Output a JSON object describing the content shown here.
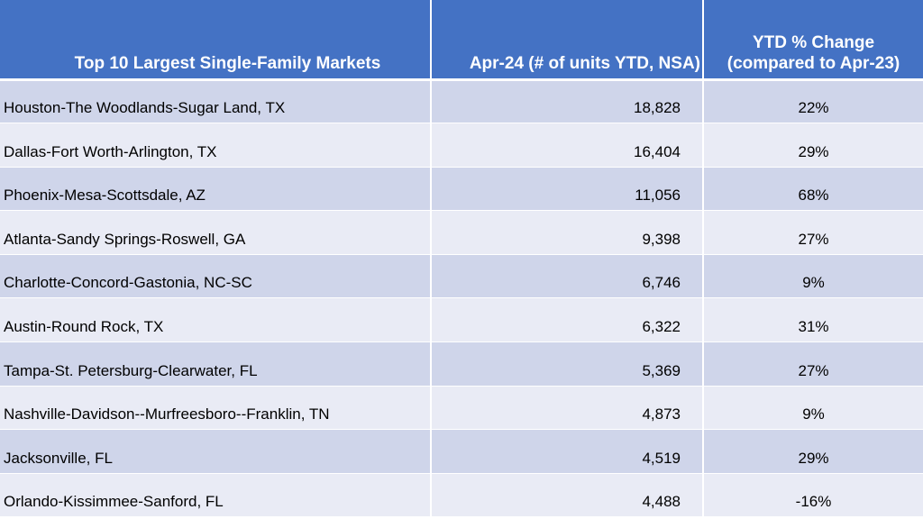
{
  "table": {
    "headers": {
      "market": "Top 10 Largest Single-Family Markets",
      "units": "Apr-24 (# of units YTD, NSA)",
      "change_line1": "YTD % Change",
      "change_line2": "(compared to Apr-23)"
    },
    "rows": [
      {
        "market": "Houston-The Woodlands-Sugar Land, TX",
        "units": "18,828",
        "change": "22%"
      },
      {
        "market": "Dallas-Fort Worth-Arlington, TX",
        "units": "16,404",
        "change": "29%"
      },
      {
        "market": "Phoenix-Mesa-Scottsdale, AZ",
        "units": "11,056",
        "change": "68%"
      },
      {
        "market": "Atlanta-Sandy Springs-Roswell, GA",
        "units": "9,398",
        "change": "27%"
      },
      {
        "market": "Charlotte-Concord-Gastonia, NC-SC",
        "units": "6,746",
        "change": "9%"
      },
      {
        "market": "Austin-Round Rock, TX",
        "units": "6,322",
        "change": "31%"
      },
      {
        "market": "Tampa-St. Petersburg-Clearwater, FL",
        "units": "5,369",
        "change": "27%"
      },
      {
        "market": "Nashville-Davidson--Murfreesboro--Franklin, TN",
        "units": "4,873",
        "change": "9%"
      },
      {
        "market": "Jacksonville, FL",
        "units": "4,519",
        "change": "29%"
      },
      {
        "market": "Orlando-Kissimmee-Sanford, FL",
        "units": "4,488",
        "change": "-16%"
      }
    ],
    "colors": {
      "header_bg": "#4472c4",
      "row_dark": "#cfd5ea",
      "row_light": "#e9ebf5"
    }
  }
}
